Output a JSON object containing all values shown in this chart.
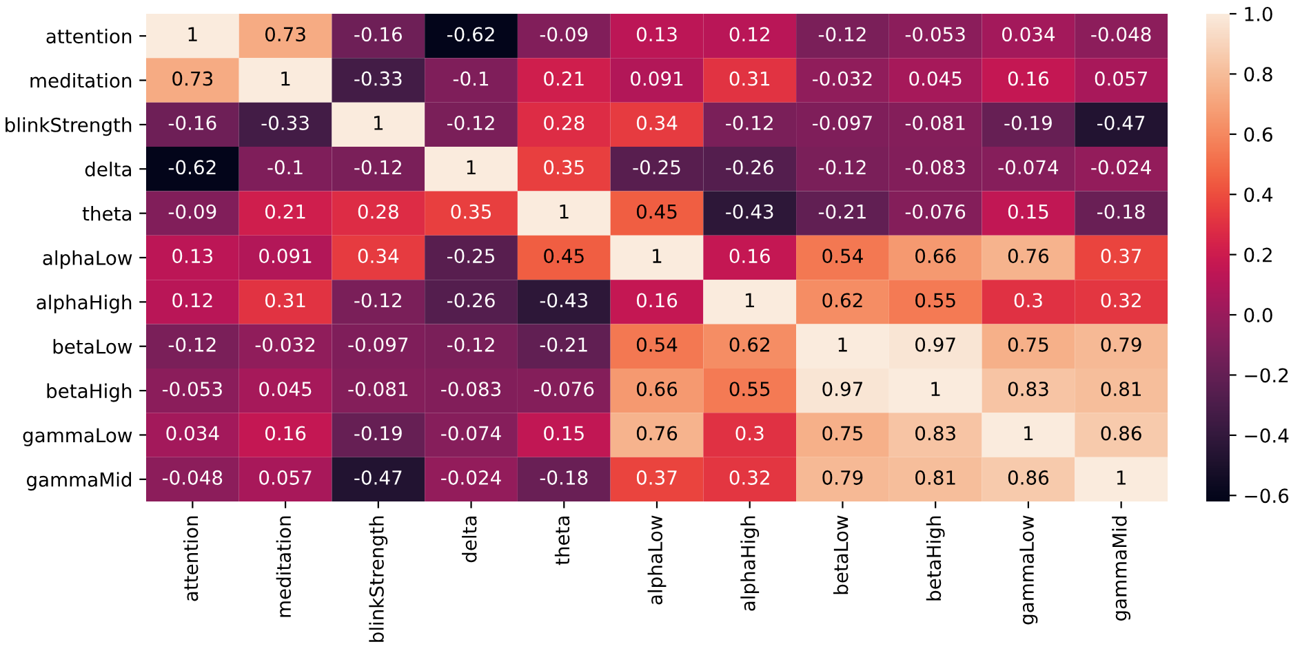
{
  "chart_data": {
    "type": "heatmap",
    "categories": [
      "attention",
      "meditation",
      "blinkStrength",
      "delta",
      "theta",
      "alphaLow",
      "alphaHigh",
      "betaLow",
      "betaHigh",
      "gammaLow",
      "gammaMid"
    ],
    "y_categories": [
      "attention",
      "meditation",
      "blinkStrength",
      "delta",
      "theta",
      "alphaLow",
      "alphaHigh",
      "betaLow",
      "betaHigh",
      "gammaLow",
      "gammaMid"
    ],
    "cells": [
      [
        1,
        0.73,
        -0.16,
        -0.62,
        -0.09,
        0.13,
        0.12,
        -0.12,
        -0.053,
        0.034,
        -0.048
      ],
      [
        0.73,
        1,
        -0.33,
        -0.1,
        0.21,
        0.091,
        0.31,
        -0.032,
        0.045,
        0.16,
        0.057
      ],
      [
        -0.16,
        -0.33,
        1,
        -0.12,
        0.28,
        0.34,
        -0.12,
        -0.097,
        -0.081,
        -0.19,
        -0.47
      ],
      [
        -0.62,
        -0.1,
        -0.12,
        1,
        0.35,
        -0.25,
        -0.26,
        -0.12,
        -0.083,
        -0.074,
        -0.024
      ],
      [
        -0.09,
        0.21,
        0.28,
        0.35,
        1,
        0.45,
        -0.43,
        -0.21,
        -0.076,
        0.15,
        -0.18
      ],
      [
        0.13,
        0.091,
        0.34,
        -0.25,
        0.45,
        1,
        0.16,
        0.54,
        0.66,
        0.76,
        0.37
      ],
      [
        0.12,
        0.31,
        -0.12,
        -0.26,
        -0.43,
        0.16,
        1,
        0.62,
        0.55,
        0.3,
        0.32
      ],
      [
        -0.12,
        -0.032,
        -0.097,
        -0.12,
        -0.21,
        0.54,
        0.62,
        1,
        0.97,
        0.75,
        0.79
      ],
      [
        -0.053,
        0.045,
        -0.081,
        -0.083,
        -0.076,
        0.66,
        0.55,
        0.97,
        1,
        0.83,
        0.81
      ],
      [
        0.034,
        0.16,
        -0.19,
        -0.074,
        0.15,
        0.76,
        0.3,
        0.75,
        0.83,
        1,
        0.86
      ],
      [
        -0.048,
        0.057,
        -0.47,
        -0.024,
        -0.18,
        0.37,
        0.32,
        0.79,
        0.81,
        0.86,
        1
      ]
    ],
    "data_labels": true,
    "clim": [
      -0.62,
      1
    ],
    "cticks": [
      {
        "value": -0.6,
        "label": "−0.6"
      },
      {
        "value": -0.4,
        "label": "−0.4"
      },
      {
        "value": -0.2,
        "label": "−0.2"
      },
      {
        "value": 0.0,
        "label": "0.0"
      },
      {
        "value": 0.2,
        "label": "0.2"
      },
      {
        "value": 0.4,
        "label": "0.4"
      },
      {
        "value": 0.6,
        "label": "0.6"
      },
      {
        "value": 0.8,
        "label": "0.8"
      },
      {
        "value": 1.0,
        "label": "1.0"
      }
    ]
  }
}
